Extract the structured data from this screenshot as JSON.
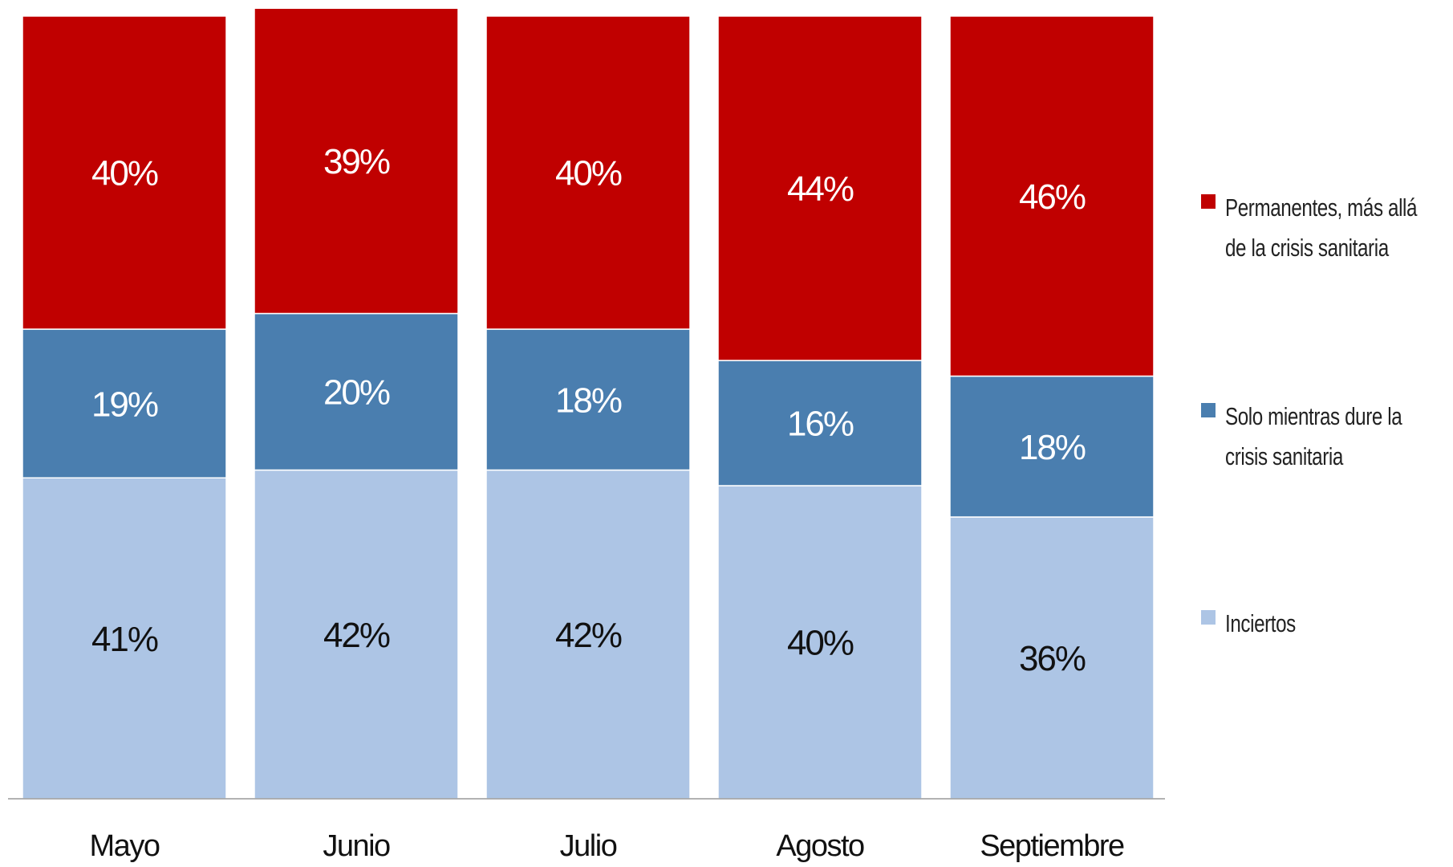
{
  "chart_data": {
    "type": "stacked-bar",
    "categories": [
      "Mayo",
      "Junio",
      "Julio",
      "Agosto",
      "Septiembre"
    ],
    "ylim": [
      0,
      100
    ],
    "series": [
      {
        "name": "Inciertos",
        "color": "#adc5e5",
        "values": [
          41,
          42,
          42,
          40,
          36
        ],
        "value_labels": [
          "41%",
          "42%",
          "42%",
          "40%",
          "36%"
        ]
      },
      {
        "name": "Solo mientras dure la crisis sanitaria",
        "color": "#4a7eaf",
        "values": [
          19,
          20,
          18,
          16,
          18
        ],
        "value_labels": [
          "19%",
          "20%",
          "18%",
          "16%",
          "18%"
        ]
      },
      {
        "name": "Permanentes, más allá de la crisis sanitaria",
        "color": "#c00000",
        "values": [
          40,
          39,
          40,
          44,
          46
        ],
        "value_labels": [
          "40%",
          "39%",
          "40%",
          "44%",
          "46%"
        ]
      }
    ]
  }
}
